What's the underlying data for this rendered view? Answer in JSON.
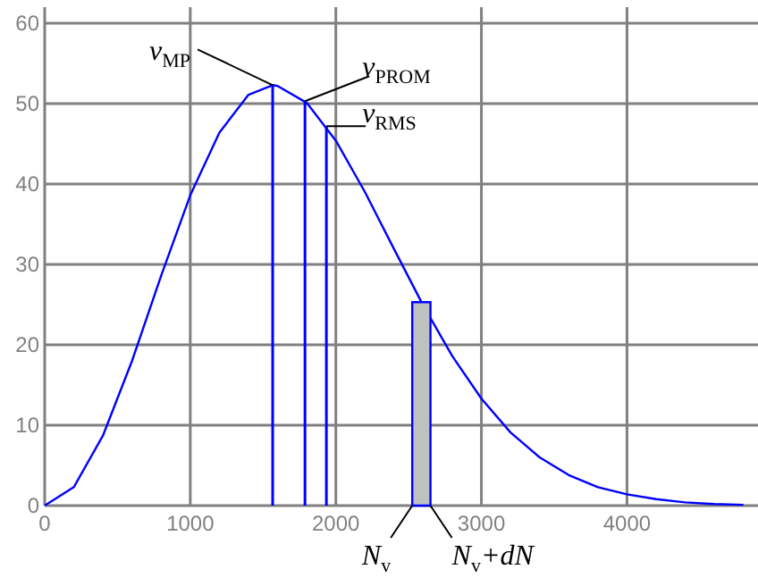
{
  "chart_data": {
    "type": "line",
    "xlim": [
      0,
      4900
    ],
    "ylim": [
      0,
      62
    ],
    "xticks": [
      0,
      1000,
      2000,
      3000,
      4000
    ],
    "yticks": [
      0,
      10,
      20,
      30,
      40,
      50,
      60
    ],
    "grid": true,
    "series": [
      {
        "color": "#0000ff",
        "x": [
          0,
          200,
          400,
          600,
          800,
          1000,
          1200,
          1400,
          1566,
          1600,
          1800,
          2000,
          2200,
          2400,
          2600,
          2800,
          3000,
          3200,
          3400,
          3600,
          3800,
          4000,
          4200,
          4400,
          4600,
          4800
        ],
        "values": [
          0,
          2.3,
          8.7,
          18.0,
          28.6,
          38.6,
          46.4,
          51.1,
          52.3,
          52.2,
          50.1,
          45.4,
          39.0,
          31.9,
          24.9,
          18.6,
          13.3,
          9.1,
          6.0,
          3.8,
          2.3,
          1.4,
          0.8,
          0.4,
          0.2,
          0.1
        ]
      },
      {
        "type": "line",
        "name": "v$_{MP}$",
        "color": "#0000ff",
        "x": [
          1566,
          1566
        ],
        "values": [
          0,
          52.3
        ]
      },
      {
        "type": "line",
        "name": "v$_{PROM}$",
        "color": "#0000ff",
        "x": [
          1788,
          1788
        ],
        "values": [
          0,
          50.3
        ]
      },
      {
        "type": "line",
        "name": "v$_{RMS}$",
        "color": "#0000ff",
        "x": [
          1935,
          1935
        ],
        "values": [
          0,
          47.2
        ]
      },
      {
        "type": "area",
        "color": "#c0c0c0",
        "x": [
          2525,
          2650
        ],
        "values": [
          25.3,
          25.3
        ]
      }
    ],
    "annotations": [
      {
        "text": "N$_{v}$",
        "x": 2525,
        "y": 0
      },
      {
        "text": "N$_{v}$+dN",
        "x": 2650,
        "y": 0
      }
    ]
  }
}
